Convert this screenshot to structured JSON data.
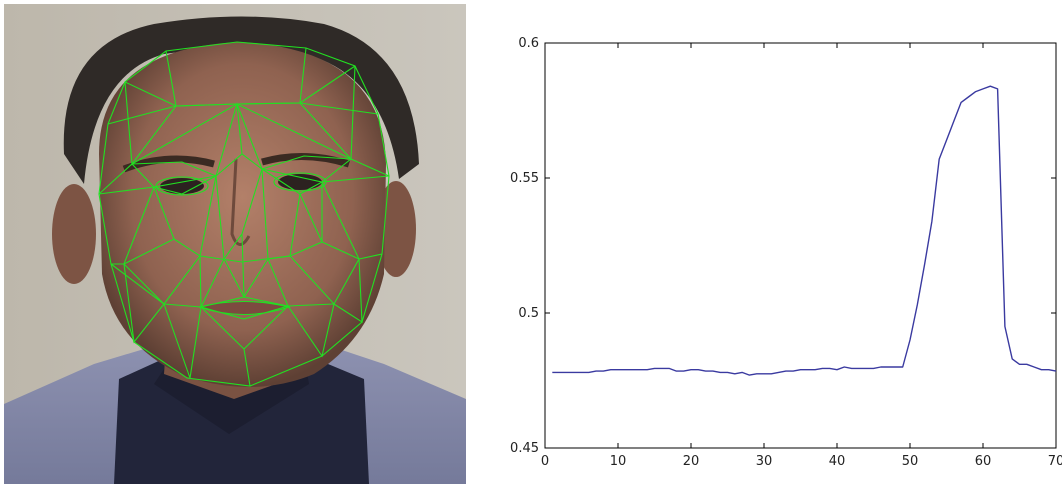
{
  "figure": {
    "left_panel": {
      "subject": "face photo with tracked mesh overlay",
      "mesh_color": "#22e022"
    }
  },
  "chart_data": {
    "type": "line",
    "title": "",
    "xlabel": "",
    "ylabel": "",
    "xlim": [
      0,
      70
    ],
    "ylim": [
      0.45,
      0.6
    ],
    "xticks": [
      0,
      10,
      20,
      30,
      40,
      50,
      60,
      70
    ],
    "yticks": [
      0.45,
      0.5,
      0.55,
      0.6
    ],
    "xtick_labels": [
      "0",
      "10",
      "20",
      "30",
      "40",
      "50",
      "60",
      "70"
    ],
    "ytick_labels": [
      "0.45",
      "0.5",
      "0.55",
      "0.6"
    ],
    "grid": false,
    "series": [
      {
        "color": "#3a3aa0",
        "x": [
          1,
          2,
          3,
          4,
          5,
          6,
          7,
          8,
          9,
          10,
          11,
          12,
          13,
          14,
          15,
          16,
          17,
          18,
          19,
          20,
          21,
          22,
          23,
          24,
          25,
          26,
          27,
          28,
          29,
          30,
          31,
          32,
          33,
          34,
          35,
          36,
          37,
          38,
          39,
          40,
          41,
          42,
          43,
          44,
          45,
          46,
          47,
          48,
          49,
          50,
          51,
          52,
          53,
          54,
          55,
          56,
          57,
          58,
          59,
          60,
          61,
          62,
          63,
          64,
          65,
          66,
          67,
          68,
          69,
          70
        ],
        "y": [
          0.478,
          0.478,
          0.478,
          0.478,
          0.478,
          0.478,
          0.4785,
          0.4785,
          0.479,
          0.479,
          0.479,
          0.479,
          0.479,
          0.479,
          0.4795,
          0.4795,
          0.4795,
          0.4785,
          0.4785,
          0.479,
          0.479,
          0.4785,
          0.4785,
          0.478,
          0.478,
          0.4775,
          0.478,
          0.477,
          0.4775,
          0.4775,
          0.4775,
          0.478,
          0.4785,
          0.4785,
          0.479,
          0.479,
          0.479,
          0.4795,
          0.4795,
          0.479,
          0.48,
          0.4795,
          0.4795,
          0.4795,
          0.4795,
          0.48,
          0.48,
          0.48,
          0.48,
          0.49,
          0.503,
          0.518,
          0.534,
          0.557,
          0.564,
          0.571,
          0.578,
          0.58,
          0.582,
          0.583,
          0.584,
          0.583,
          0.495,
          0.483,
          0.481,
          0.481,
          0.48,
          0.479,
          0.479,
          0.4785
        ]
      }
    ]
  }
}
